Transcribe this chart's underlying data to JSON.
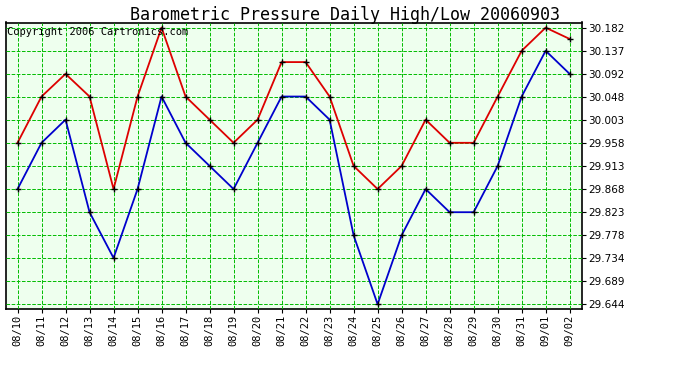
{
  "title": "Barometric Pressure Daily High/Low 20060903",
  "copyright": "Copyright 2006 Cartronics.com",
  "dates": [
    "08/10",
    "08/11",
    "08/12",
    "08/13",
    "08/14",
    "08/15",
    "08/16",
    "08/17",
    "08/18",
    "08/19",
    "08/20",
    "08/21",
    "08/22",
    "08/23",
    "08/24",
    "08/25",
    "08/26",
    "08/27",
    "08/28",
    "08/29",
    "08/30",
    "08/31",
    "09/01",
    "09/02"
  ],
  "high": [
    29.958,
    30.048,
    30.092,
    30.048,
    29.868,
    30.048,
    30.182,
    30.048,
    30.003,
    29.958,
    30.003,
    30.115,
    30.115,
    30.048,
    29.913,
    29.868,
    29.913,
    30.003,
    29.958,
    29.958,
    30.048,
    30.137,
    30.182,
    30.16
  ],
  "low": [
    29.868,
    29.958,
    30.003,
    29.823,
    29.734,
    29.868,
    30.048,
    29.958,
    29.913,
    29.868,
    29.958,
    30.048,
    30.048,
    30.003,
    29.778,
    29.644,
    29.778,
    29.868,
    29.823,
    29.823,
    29.913,
    30.048,
    30.137,
    30.092
  ],
  "ylim_min": 29.644,
  "ylim_max": 30.182,
  "yticks": [
    29.644,
    29.689,
    29.734,
    29.778,
    29.823,
    29.868,
    29.913,
    29.958,
    30.003,
    30.048,
    30.092,
    30.137,
    30.182
  ],
  "high_color": "#dd0000",
  "low_color": "#0000cc",
  "grid_color": "#00bb00",
  "bg_color": "#eeffee",
  "fig_bg_color": "#ffffff",
  "title_fontsize": 12,
  "copyright_fontsize": 7.5,
  "tick_fontsize": 7.5,
  "marker_size": 5,
  "linewidth": 1.3
}
